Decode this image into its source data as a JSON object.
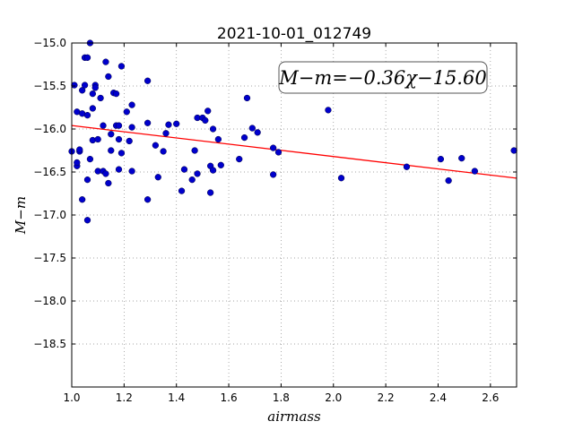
{
  "chart_data": {
    "type": "scatter",
    "title": "2021-10-01_012749",
    "xlabel": "airmass",
    "ylabel": "M−m",
    "xlim": [
      1.0,
      2.7
    ],
    "ylim": [
      -15.0,
      -19.0
    ],
    "y_inverted": true,
    "xticks": [
      "1.0",
      "1.2",
      "1.4",
      "1.6",
      "1.8",
      "2.0",
      "2.2",
      "2.4",
      "2.6"
    ],
    "yticks": [
      "−15.0",
      "−15.5",
      "−16.0",
      "−16.5",
      "−17.0",
      "−17.5",
      "−18.0",
      "−18.5"
    ],
    "grid": true,
    "annotation": "M−m=−0.36χ−15.60",
    "fit_line": {
      "slope": -0.36,
      "intercept": -15.6,
      "color": "#ff0000"
    },
    "marker_color": "#0000cc",
    "points": [
      [
        1.0,
        -16.26
      ],
      [
        1.01,
        -15.49
      ],
      [
        1.02,
        -16.43
      ],
      [
        1.02,
        -16.39
      ],
      [
        1.02,
        -15.8
      ],
      [
        1.03,
        -16.26
      ],
      [
        1.03,
        -16.24
      ],
      [
        1.04,
        -15.55
      ],
      [
        1.04,
        -15.82
      ],
      [
        1.04,
        -16.82
      ],
      [
        1.05,
        -15.17
      ],
      [
        1.05,
        -15.49
      ],
      [
        1.06,
        -15.84
      ],
      [
        1.06,
        -16.59
      ],
      [
        1.06,
        -17.06
      ],
      [
        1.06,
        -15.17
      ],
      [
        1.07,
        -15.0
      ],
      [
        1.07,
        -16.35
      ],
      [
        1.08,
        -15.59
      ],
      [
        1.08,
        -15.76
      ],
      [
        1.08,
        -16.13
      ],
      [
        1.09,
        -15.49
      ],
      [
        1.09,
        -15.52
      ],
      [
        1.1,
        -16.12
      ],
      [
        1.1,
        -16.49
      ],
      [
        1.11,
        -15.64
      ],
      [
        1.12,
        -15.96
      ],
      [
        1.12,
        -16.49
      ],
      [
        1.13,
        -16.52
      ],
      [
        1.13,
        -15.22
      ],
      [
        1.14,
        -15.39
      ],
      [
        1.14,
        -16.63
      ],
      [
        1.15,
        -16.06
      ],
      [
        1.15,
        -16.25
      ],
      [
        1.16,
        -15.58
      ],
      [
        1.17,
        -15.59
      ],
      [
        1.17,
        -15.96
      ],
      [
        1.18,
        -15.96
      ],
      [
        1.18,
        -16.12
      ],
      [
        1.18,
        -16.47
      ],
      [
        1.19,
        -15.27
      ],
      [
        1.19,
        -16.28
      ],
      [
        1.21,
        -15.8
      ],
      [
        1.22,
        -16.14
      ],
      [
        1.23,
        -15.98
      ],
      [
        1.23,
        -15.72
      ],
      [
        1.23,
        -16.49
      ],
      [
        1.29,
        -15.44
      ],
      [
        1.29,
        -16.82
      ],
      [
        1.29,
        -15.93
      ],
      [
        1.32,
        -16.19
      ],
      [
        1.33,
        -16.56
      ],
      [
        1.35,
        -16.26
      ],
      [
        1.36,
        -16.05
      ],
      [
        1.37,
        -15.95
      ],
      [
        1.4,
        -15.94
      ],
      [
        1.42,
        -16.72
      ],
      [
        1.43,
        -16.47
      ],
      [
        1.46,
        -16.59
      ],
      [
        1.47,
        -16.25
      ],
      [
        1.48,
        -15.87
      ],
      [
        1.48,
        -16.52
      ],
      [
        1.5,
        -15.87
      ],
      [
        1.51,
        -15.9
      ],
      [
        1.52,
        -15.79
      ],
      [
        1.53,
        -16.43
      ],
      [
        1.53,
        -16.74
      ],
      [
        1.54,
        -16.48
      ],
      [
        1.54,
        -16.0
      ],
      [
        1.56,
        -16.12
      ],
      [
        1.57,
        -16.42
      ],
      [
        1.64,
        -16.35
      ],
      [
        1.66,
        -16.1
      ],
      [
        1.67,
        -15.64
      ],
      [
        1.69,
        -15.99
      ],
      [
        1.71,
        -16.04
      ],
      [
        1.77,
        -16.22
      ],
      [
        1.77,
        -16.53
      ],
      [
        1.79,
        -16.27
      ],
      [
        1.98,
        -15.78
      ],
      [
        2.03,
        -16.57
      ],
      [
        2.28,
        -16.44
      ],
      [
        2.41,
        -16.35
      ],
      [
        2.44,
        -16.6
      ],
      [
        2.49,
        -16.34
      ],
      [
        2.54,
        -16.49
      ],
      [
        2.69,
        -16.25
      ]
    ]
  }
}
